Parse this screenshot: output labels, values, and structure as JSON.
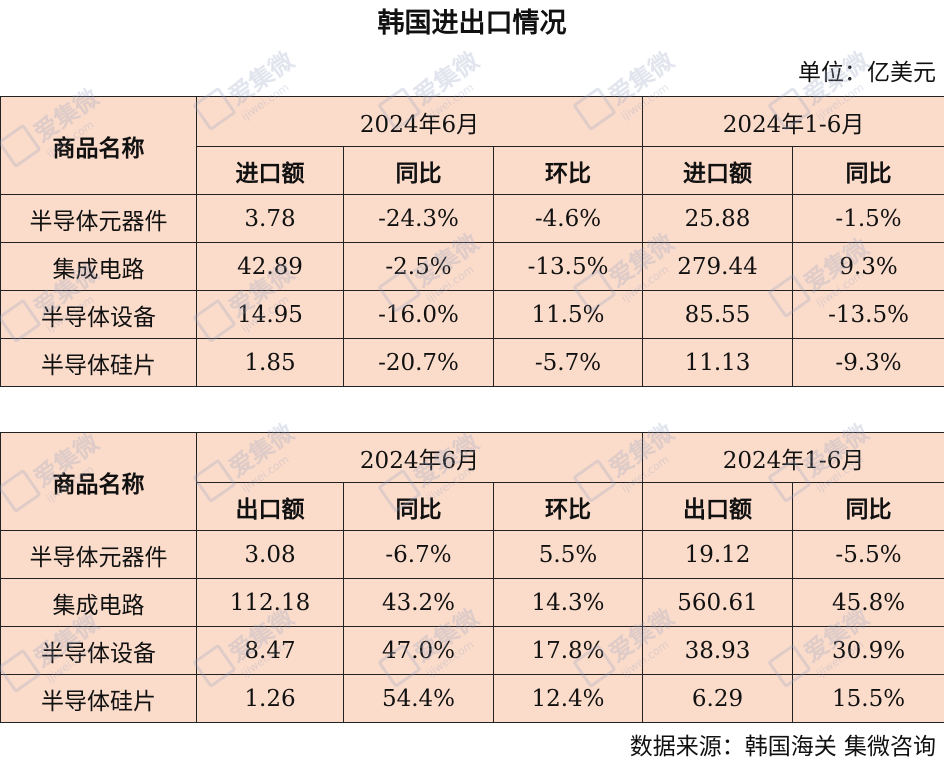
{
  "title": "韩国进出口情况",
  "unit": "单位：亿美元",
  "source": "数据来源：韩国海关 集微咨询",
  "watermark": {
    "text": "爱集微",
    "url": "ijiwei.com"
  },
  "import_table": {
    "category_header": "商品名称",
    "period_month": "2024年6月",
    "period_ytd": "2024年1-6月",
    "columns": [
      "进口额",
      "同比",
      "环比",
      "进口额",
      "同比"
    ],
    "rows": [
      {
        "name": "半导体元器件",
        "cells": [
          "3.78",
          "-24.3%",
          "-4.6%",
          "25.88",
          "-1.5%"
        ]
      },
      {
        "name": "集成电路",
        "cells": [
          "42.89",
          "-2.5%",
          "-13.5%",
          "279.44",
          "9.3%"
        ]
      },
      {
        "name": "半导体设备",
        "cells": [
          "14.95",
          "-16.0%",
          "11.5%",
          "85.55",
          "-13.5%"
        ]
      },
      {
        "name": "半导体硅片",
        "cells": [
          "1.85",
          "-20.7%",
          "-5.7%",
          "11.13",
          "-9.3%"
        ]
      }
    ]
  },
  "export_table": {
    "category_header": "商品名称",
    "period_month": "2024年6月",
    "period_ytd": "2024年1-6月",
    "columns": [
      "出口额",
      "同比",
      "环比",
      "出口额",
      "同比"
    ],
    "rows": [
      {
        "name": "半导体元器件",
        "cells": [
          "3.08",
          "-6.7%",
          "5.5%",
          "19.12",
          "-5.5%"
        ]
      },
      {
        "name": "集成电路",
        "cells": [
          "112.18",
          "43.2%",
          "14.3%",
          "560.61",
          "45.8%"
        ]
      },
      {
        "name": "半导体设备",
        "cells": [
          "8.47",
          "47.0%",
          "17.8%",
          "38.93",
          "30.9%"
        ]
      },
      {
        "name": "半导体硅片",
        "cells": [
          "1.26",
          "54.4%",
          "12.4%",
          "6.29",
          "15.5%"
        ]
      }
    ]
  }
}
